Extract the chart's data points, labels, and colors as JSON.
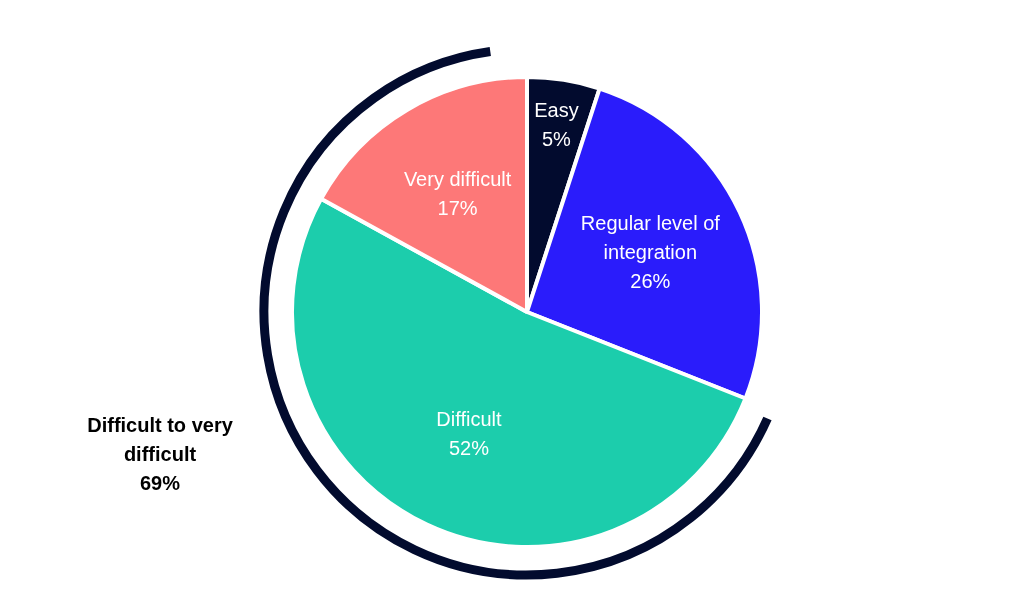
{
  "chart_data": {
    "type": "pie",
    "categories": [
      "Easy",
      "Regular level of integration",
      "Difficult",
      "Very difficult"
    ],
    "values": [
      5,
      26,
      52,
      17
    ],
    "colors": [
      "#020b2e",
      "#2a1cfb",
      "#1ccdac",
      "#fd7878"
    ],
    "value_labels": [
      "5%",
      "26%",
      "52%",
      "17%"
    ],
    "annotations": [
      "Difficult to very difficult\n69%"
    ]
  }
}
